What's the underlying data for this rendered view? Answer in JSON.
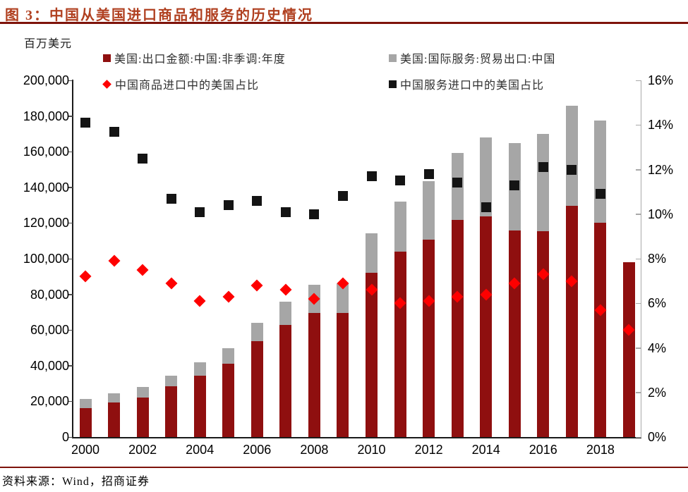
{
  "chart_data": {
    "type": "bar",
    "title": "图 3：中国从美国进口商品和服务的历史情况",
    "unit_label": "百万美元",
    "source": "资料来源：Wind，招商证券",
    "x": [
      2000,
      2001,
      2002,
      2003,
      2004,
      2005,
      2006,
      2007,
      2008,
      2009,
      2010,
      2011,
      2012,
      2013,
      2014,
      2015,
      2016,
      2017,
      2018,
      2019
    ],
    "x_ticks": [
      2000,
      2002,
      2004,
      2006,
      2008,
      2010,
      2012,
      2014,
      2016,
      2018
    ],
    "left_axis": {
      "min": 0,
      "max": 200000,
      "step": 20000
    },
    "right_axis": {
      "min": 0,
      "max": 16,
      "step": 2,
      "suffix": "%"
    },
    "grid": false,
    "legend_position": "top",
    "series": [
      {
        "name": "美国:出口金额:中国:非季调:年度",
        "kind": "bar-stack",
        "axis": "left",
        "color": "#8f0f0f",
        "values": [
          16200,
          19200,
          22100,
          28400,
          34400,
          41200,
          53700,
          62900,
          69700,
          69500,
          91900,
          104100,
          110500,
          121700,
          123700,
          115900,
          115500,
          129800,
          120300,
          97900
        ]
      },
      {
        "name": "美国:国际服务:贸易出口:中国",
        "kind": "bar-stack",
        "axis": "left",
        "color": "#a6a6a6",
        "values": [
          5300,
          5500,
          6000,
          6100,
          7600,
          8800,
          10500,
          13100,
          15700,
          16500,
          22500,
          28100,
          33000,
          37600,
          44300,
          48800,
          54600,
          56000,
          57200,
          0
        ]
      },
      {
        "name": "中国商品进口中的美国占比",
        "kind": "scatter-diamond",
        "axis": "right",
        "color": "#fe0000",
        "values": [
          7.2,
          7.9,
          7.5,
          6.9,
          6.1,
          6.3,
          6.8,
          6.6,
          6.2,
          6.9,
          6.6,
          6.0,
          6.1,
          6.3,
          6.4,
          6.9,
          7.3,
          7.0,
          5.7,
          4.8
        ]
      },
      {
        "name": "中国服务进口中的美国占比",
        "kind": "scatter-square",
        "axis": "right",
        "color": "#141414",
        "values": [
          14.1,
          13.7,
          12.5,
          10.7,
          10.1,
          10.4,
          10.6,
          10.1,
          10.0,
          10.8,
          11.7,
          11.5,
          11.8,
          11.4,
          10.3,
          11.3,
          12.1,
          12.0,
          10.9,
          null
        ]
      }
    ]
  }
}
